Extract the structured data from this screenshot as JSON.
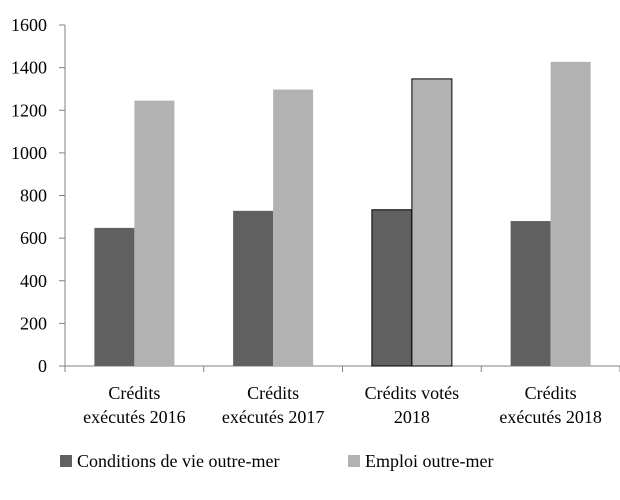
{
  "chart_data": {
    "type": "bar",
    "categories": [
      [
        "Crédits",
        "exécutés 2016"
      ],
      [
        "Crédits",
        "exécutés 2017"
      ],
      [
        "Crédits votés",
        "2018"
      ],
      [
        "Crédits",
        "exécutés 2018"
      ]
    ],
    "series": [
      {
        "name": "Conditions de vie outre-mer",
        "values": [
          648,
          728,
          733,
          680
        ],
        "color": "#606060"
      },
      {
        "name": "Emploi outre-mer",
        "values": [
          1245,
          1297,
          1347,
          1427
        ],
        "color": "#b2b2b2"
      }
    ],
    "outlined_category_index": 2,
    "ylim": [
      0,
      1600
    ],
    "yticks": [
      "0",
      "200",
      "400",
      "600",
      "800",
      "1000",
      "1200",
      "1400",
      "1600"
    ],
    "grid": false,
    "legend_position": "bottom-left"
  }
}
